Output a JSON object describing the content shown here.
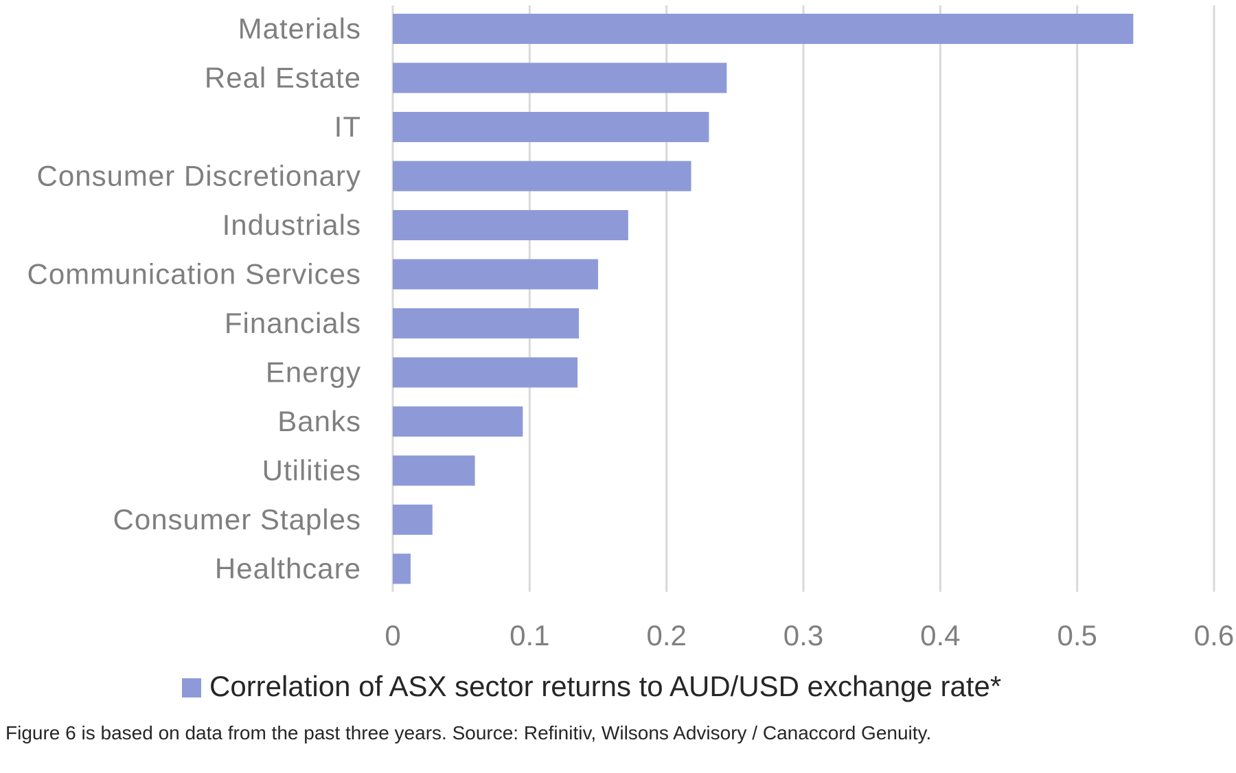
{
  "chart_data": {
    "type": "bar",
    "orientation": "horizontal",
    "categories": [
      "Materials",
      "Real Estate",
      "IT",
      "Consumer Discretionary",
      "Industrials",
      "Communication Services",
      "Financials",
      "Energy",
      "Banks",
      "Utilities",
      "Consumer Staples",
      "Healthcare"
    ],
    "series": [
      {
        "name": "Correlation of ASX sector returns to AUD/USD exchange rate*",
        "values": [
          0.541,
          0.244,
          0.231,
          0.218,
          0.172,
          0.15,
          0.136,
          0.135,
          0.095,
          0.06,
          0.029,
          0.013
        ],
        "color": "#8e9ad8"
      }
    ],
    "xlim": [
      0,
      0.6
    ],
    "xticks": [
      "0",
      "0.1",
      "0.2",
      "0.3",
      "0.4",
      "0.5",
      "0.6"
    ],
    "grid": "vertical",
    "legend_position": "bottom"
  },
  "footnote": "Figure 6 is based on data from the past three years. Source: Refinitiv, Wilsons Advisory / Canaccord Genuity."
}
